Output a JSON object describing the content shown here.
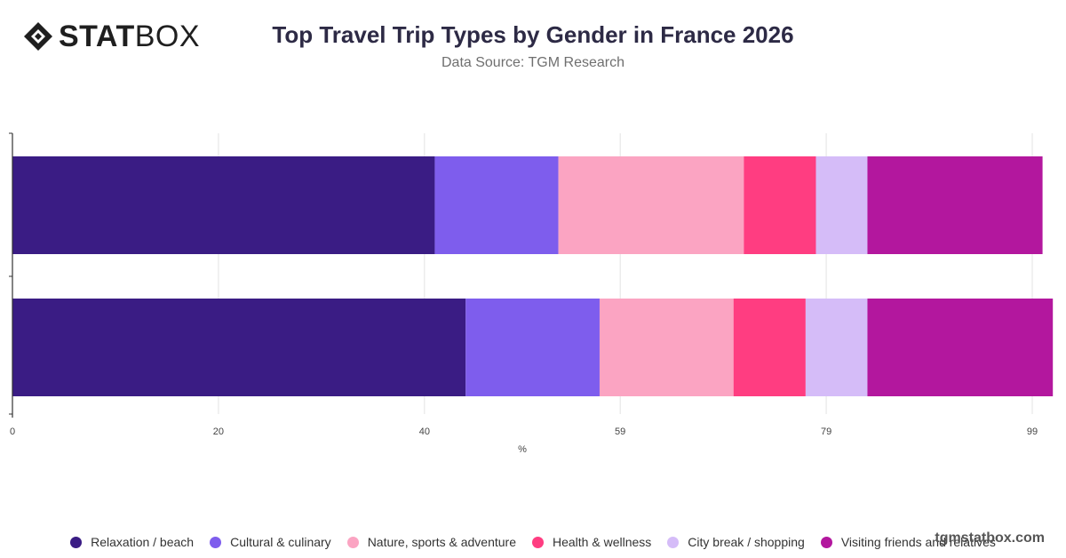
{
  "brand": {
    "bold": "STAT",
    "regular": "BOX"
  },
  "title": "Top Travel Trip Types by Gender in France 2026",
  "subtitle": "Data Source: TGM Research",
  "watermark": "tgmstatbox.com",
  "chart_data": {
    "type": "bar",
    "orientation": "horizontal",
    "stacked": true,
    "categories": [
      "",
      ""
    ],
    "series": [
      {
        "name": "Relaxation / beach",
        "color": "#3a1c84",
        "values": [
          41,
          44
        ]
      },
      {
        "name": "Cultural & culinary",
        "color": "#7e5ded",
        "values": [
          12,
          13
        ]
      },
      {
        "name": "Nature, sports & adventure",
        "color": "#fba4c2",
        "values": [
          18,
          13
        ]
      },
      {
        "name": "Health & wellness",
        "color": "#ff3d81",
        "values": [
          7,
          7
        ]
      },
      {
        "name": "City break / shopping",
        "color": "#d5bcf8",
        "values": [
          5,
          6
        ]
      },
      {
        "name": "Visiting friends and relatives",
        "color": "#b3179e",
        "values": [
          17,
          18
        ]
      }
    ],
    "xticks": [
      "0",
      "20",
      "40",
      "59",
      "79",
      "99"
    ],
    "xlim": [
      0,
      99
    ],
    "xlabel": "%",
    "ylabel": "",
    "grid": true,
    "legend_position": "bottom"
  }
}
